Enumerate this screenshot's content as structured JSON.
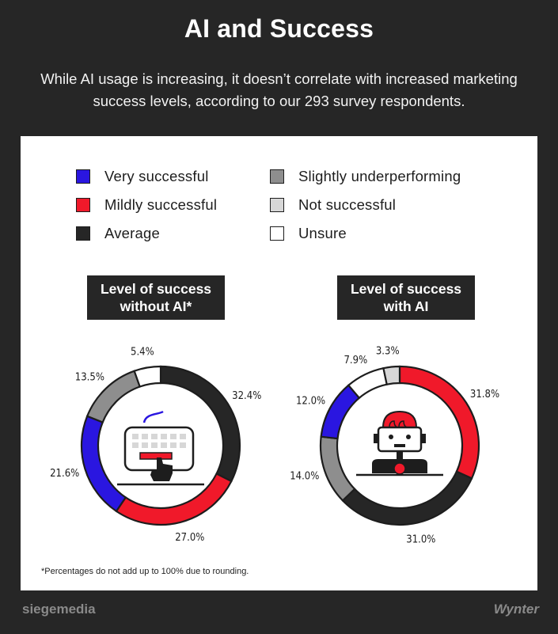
{
  "header": {
    "title": "AI and Success",
    "subtitle": "While AI usage is increasing, it doesn’t correlate with increased marketing success levels, according to our 293 survey respondents."
  },
  "legend": [
    {
      "label": "Very successful",
      "color": "#2a16e0"
    },
    {
      "label": "Mildly successful",
      "color": "#f0192a"
    },
    {
      "label": "Average",
      "color": "#262626"
    },
    {
      "label": "Slightly underperforming",
      "color": "#8e8e8e"
    },
    {
      "label": "Not successful",
      "color": "#d7d7d7"
    },
    {
      "label": "Unsure",
      "color": "#ffffff"
    }
  ],
  "chart_data": [
    {
      "type": "pie",
      "title": "Level of success without AI*",
      "title_lines": [
        "Level of success",
        "without AI*"
      ],
      "icon": "keyboard-hand-icon",
      "slices": [
        {
          "label": "Average",
          "value": 32.4,
          "display": "32.4%",
          "color": "#262626"
        },
        {
          "label": "Mildly successful",
          "value": 27.0,
          "display": "27.0%",
          "color": "#f0192a"
        },
        {
          "label": "Very successful",
          "value": 21.6,
          "display": "21.6%",
          "color": "#2a16e0"
        },
        {
          "label": "Slightly underperforming",
          "value": 13.5,
          "display": "13.5%",
          "color": "#8e8e8e"
        },
        {
          "label": "Unsure",
          "value": 5.4,
          "display": "5.4%",
          "color": "#ffffff"
        }
      ]
    },
    {
      "type": "pie",
      "title": "Level of success with AI",
      "title_lines": [
        "Level of success",
        "with AI"
      ],
      "icon": "robot-icon",
      "slices": [
        {
          "label": "Mildly successful",
          "value": 31.8,
          "display": "31.8%",
          "color": "#f0192a"
        },
        {
          "label": "Average",
          "value": 31.0,
          "display": "31.0%",
          "color": "#262626"
        },
        {
          "label": "Slightly underperforming",
          "value": 14.0,
          "display": "14.0%",
          "color": "#8e8e8e"
        },
        {
          "label": "Very successful",
          "value": 12.0,
          "display": "12.0%",
          "color": "#2a16e0"
        },
        {
          "label": "Unsure",
          "value": 7.9,
          "display": "7.9%",
          "color": "#ffffff"
        },
        {
          "label": "Not successful",
          "value": 3.3,
          "display": "3.3%",
          "color": "#d7d7d7"
        }
      ]
    }
  ],
  "footnote": "*Percentages do not add up to 100% due to rounding.",
  "footer": {
    "brand_left": "siegemedia",
    "brand_right": "Wynter"
  }
}
